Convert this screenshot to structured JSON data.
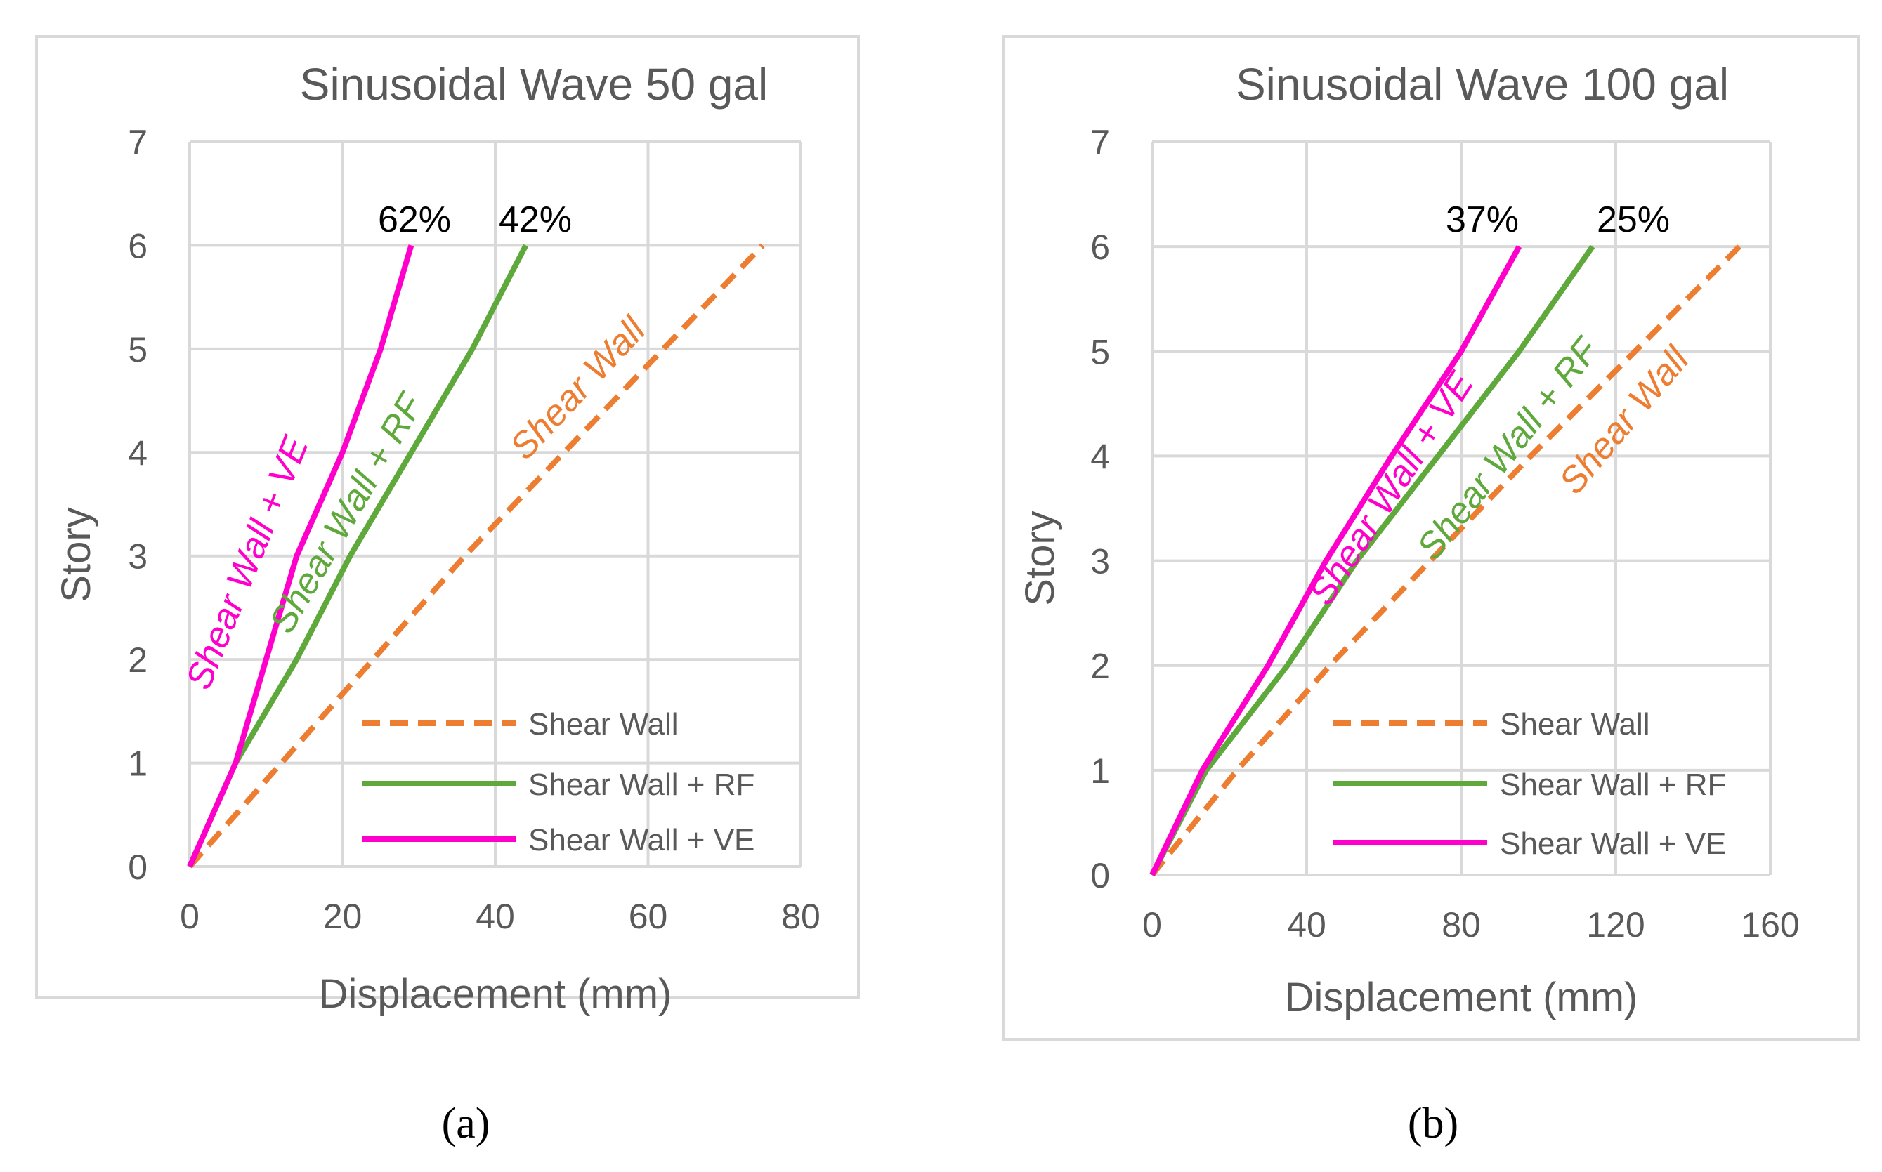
{
  "chart_data": [
    {
      "type": "line",
      "title": "Sinusoidal Wave 50 gal",
      "xlabel": "Displacement (mm)",
      "ylabel": "Story",
      "xlim": [
        0,
        80
      ],
      "ylim": [
        0,
        7
      ],
      "xticks": [
        "0",
        "20",
        "40",
        "60",
        "80"
      ],
      "yticks": [
        "0",
        "1",
        "2",
        "3",
        "4",
        "5",
        "6",
        "7"
      ],
      "grid": true,
      "legend_position": "bottom-right",
      "series": [
        {
          "name": "Shear Wall",
          "style": "dashed",
          "color": "#ED7D31",
          "x": [
            0,
            12,
            24,
            36,
            49,
            62,
            75
          ],
          "y": [
            0,
            1,
            2,
            3,
            4,
            5,
            6
          ]
        },
        {
          "name": "Shear Wall + RF",
          "style": "solid",
          "color": "#5FA83B",
          "x": [
            0,
            6,
            14,
            21,
            29,
            37,
            44
          ],
          "y": [
            0,
            1,
            2,
            3,
            4,
            5,
            6
          ]
        },
        {
          "name": "Shear Wall + VE",
          "style": "solid",
          "color": "#FF00CC",
          "x": [
            0,
            6,
            10,
            14,
            20,
            25,
            29
          ],
          "y": [
            0,
            1,
            2,
            3,
            4,
            5,
            6
          ]
        }
      ],
      "annotations": [
        {
          "text": "62%",
          "x": 29,
          "y": 6
        },
        {
          "text": "42%",
          "x": 44,
          "y": 6
        }
      ],
      "curve_labels": [
        {
          "text": "Shear Wall + VE",
          "series": 2
        },
        {
          "text": "Shear Wall + RF",
          "series": 1
        },
        {
          "text": "Shear Wall",
          "series": 0
        }
      ],
      "caption": "(a)"
    },
    {
      "type": "line",
      "title": "Sinusoidal Wave 100 gal",
      "xlabel": "Displacement (mm)",
      "ylabel": "Story",
      "xlim": [
        0,
        160
      ],
      "ylim": [
        0,
        7
      ],
      "xticks": [
        "0",
        "40",
        "80",
        "120",
        "160"
      ],
      "yticks": [
        "0",
        "1",
        "2",
        "3",
        "4",
        "5",
        "6",
        "7"
      ],
      "grid": true,
      "legend_position": "bottom-right",
      "series": [
        {
          "name": "Shear Wall",
          "style": "dashed",
          "color": "#ED7D31",
          "x": [
            0,
            22,
            46,
            72,
            98,
            125,
            152
          ],
          "y": [
            0,
            1,
            2,
            3,
            4,
            5,
            6
          ]
        },
        {
          "name": "Shear Wall + RF",
          "style": "solid",
          "color": "#5FA83B",
          "x": [
            0,
            14,
            35,
            53,
            74,
            95,
            114
          ],
          "y": [
            0,
            1,
            2,
            3,
            4,
            5,
            6
          ]
        },
        {
          "name": "Shear Wall + VE",
          "style": "solid",
          "color": "#FF00CC",
          "x": [
            0,
            13,
            30,
            45,
            62,
            80,
            95
          ],
          "y": [
            0,
            1,
            2,
            3,
            4,
            5,
            6
          ]
        }
      ],
      "annotations": [
        {
          "text": "37%",
          "x": 95,
          "y": 6
        },
        {
          "text": "25%",
          "x": 114,
          "y": 6
        }
      ],
      "curve_labels": [
        {
          "text": "Shear Wall + VE",
          "series": 2
        },
        {
          "text": "Shear Wall + RF",
          "series": 1
        },
        {
          "text": "Shear Wall",
          "series": 0
        }
      ],
      "caption": "(b)"
    }
  ]
}
